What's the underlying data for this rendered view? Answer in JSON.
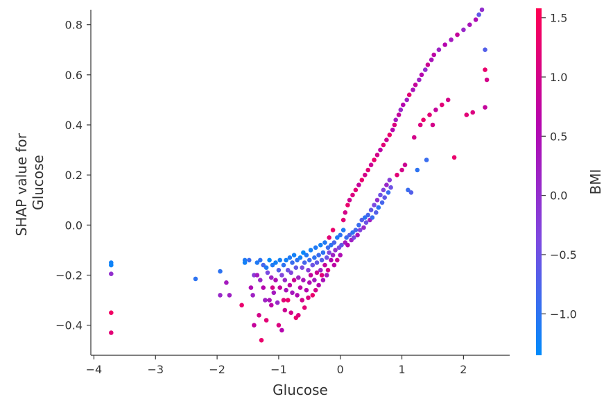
{
  "chart_data": {
    "type": "scatter",
    "title": "",
    "xlabel": "Glucose",
    "ylabel_lines": [
      "SHAP value for",
      "Glucose"
    ],
    "xlim": [
      -4.05,
      2.75
    ],
    "ylim": [
      -0.52,
      0.86
    ],
    "xticks": [
      -4,
      -3,
      -2,
      -1,
      0,
      1,
      2
    ],
    "xtick_labels": [
      "−4",
      "−3",
      "−2",
      "−1",
      "0",
      "1",
      "2"
    ],
    "yticks": [
      -0.4,
      -0.2,
      0.0,
      0.2,
      0.4,
      0.6,
      0.8
    ],
    "ytick_labels": [
      "−0.4",
      "−0.2",
      "0.0",
      "0.2",
      "0.4",
      "0.6",
      "0.8"
    ],
    "grid": false,
    "colorbar": {
      "label": "BMI",
      "range": [
        -1.35,
        1.58
      ],
      "ticks": [
        -1.0,
        -0.5,
        0.0,
        0.5,
        1.0,
        1.5
      ],
      "tick_labels": [
        "−1.0",
        "−0.5",
        "0.0",
        "0.5",
        "1.0",
        "1.5"
      ],
      "colors": [
        "#008bfb",
        "#7d49e0",
        "#b505ae",
        "#ff0052"
      ]
    },
    "series": [
      {
        "points": [
          [
            -3.72,
            -0.15,
            -1.2
          ],
          [
            -3.72,
            -0.16,
            -1.25
          ],
          [
            -3.72,
            -0.195,
            0.0
          ],
          [
            -3.72,
            -0.35,
            1.4
          ],
          [
            -3.72,
            -0.43,
            1.2
          ],
          [
            -2.35,
            -0.215,
            -1.0
          ],
          [
            -1.95,
            -0.185,
            -1.0
          ],
          [
            -1.95,
            -0.28,
            0.1
          ],
          [
            -1.85,
            -0.23,
            0.3
          ],
          [
            -1.8,
            -0.28,
            0.2
          ],
          [
            -1.6,
            -0.32,
            1.3
          ],
          [
            -1.55,
            -0.14,
            -1.1
          ],
          [
            -1.55,
            -0.15,
            -1.2
          ],
          [
            -1.48,
            -0.14,
            -0.9
          ],
          [
            -1.45,
            -0.25,
            0.5
          ],
          [
            -1.42,
            -0.28,
            0.2
          ],
          [
            -1.4,
            -0.2,
            -0.2
          ],
          [
            -1.4,
            -0.4,
            0.8
          ],
          [
            -1.35,
            -0.15,
            -1.1
          ],
          [
            -1.35,
            -0.2,
            0.3
          ],
          [
            -1.32,
            -0.36,
            1.0
          ],
          [
            -1.3,
            -0.14,
            -1.0
          ],
          [
            -1.3,
            -0.22,
            0.1
          ],
          [
            -1.28,
            -0.46,
            1.3
          ],
          [
            -1.25,
            -0.16,
            -0.8
          ],
          [
            -1.25,
            -0.25,
            0.6
          ],
          [
            -1.22,
            -0.3,
            0.2
          ],
          [
            -1.2,
            -0.17,
            -1.1
          ],
          [
            -1.2,
            -0.38,
            1.2
          ],
          [
            -1.18,
            -0.19,
            -0.4
          ],
          [
            -1.15,
            -0.14,
            -1.3
          ],
          [
            -1.15,
            -0.3,
            0.4
          ],
          [
            -1.12,
            -0.21,
            0.2
          ],
          [
            -1.12,
            -0.32,
            0.7
          ],
          [
            -1.1,
            -0.16,
            -1.1
          ],
          [
            -1.1,
            -0.25,
            1.0
          ],
          [
            -1.08,
            -0.27,
            0.3
          ],
          [
            -1.05,
            -0.15,
            -1.2
          ],
          [
            -1.05,
            -0.22,
            0.5
          ],
          [
            -1.02,
            -0.31,
            0.1
          ],
          [
            -1.0,
            -0.18,
            -0.7
          ],
          [
            -1.0,
            -0.4,
            1.1
          ],
          [
            -0.98,
            -0.14,
            -1.2
          ],
          [
            -0.98,
            -0.25,
            0.8
          ],
          [
            -0.95,
            -0.2,
            -0.3
          ],
          [
            -0.95,
            -0.42,
            0.6
          ],
          [
            -0.92,
            -0.16,
            -1.0
          ],
          [
            -0.92,
            -0.3,
            1.2
          ],
          [
            -0.9,
            -0.22,
            0.1
          ],
          [
            -0.9,
            -0.34,
            0.9
          ],
          [
            -0.88,
            -0.14,
            -1.2
          ],
          [
            -0.88,
            -0.26,
            0.4
          ],
          [
            -0.85,
            -0.18,
            -0.5
          ],
          [
            -0.85,
            -0.3,
            1.3
          ],
          [
            -0.82,
            -0.13,
            -1.1
          ],
          [
            -0.82,
            -0.24,
            0.7
          ],
          [
            -0.8,
            -0.19,
            -0.3
          ],
          [
            -0.8,
            -0.35,
            1.0
          ],
          [
            -0.78,
            -0.15,
            -0.9
          ],
          [
            -0.78,
            -0.27,
            0.3
          ],
          [
            -0.75,
            -0.12,
            -1.2
          ],
          [
            -0.75,
            -0.22,
            0.9
          ],
          [
            -0.72,
            -0.17,
            -0.6
          ],
          [
            -0.72,
            -0.37,
            1.3
          ],
          [
            -0.7,
            -0.14,
            -1.0
          ],
          [
            -0.7,
            -0.28,
            0.5
          ],
          [
            -0.68,
            -0.21,
            0.2
          ],
          [
            -0.68,
            -0.36,
            1.1
          ],
          [
            -0.65,
            -0.13,
            -1.2
          ],
          [
            -0.65,
            -0.25,
            0.7
          ],
          [
            -0.62,
            -0.17,
            -0.4
          ],
          [
            -0.62,
            -0.3,
            1.0
          ],
          [
            -0.6,
            -0.11,
            -1.3
          ],
          [
            -0.6,
            -0.22,
            0.4
          ],
          [
            -0.58,
            -0.15,
            -0.8
          ],
          [
            -0.58,
            -0.33,
            1.2
          ],
          [
            -0.55,
            -0.12,
            -1.1
          ],
          [
            -0.55,
            -0.26,
            0.6
          ],
          [
            -0.52,
            -0.18,
            -0.2
          ],
          [
            -0.52,
            -0.29,
            1.1
          ],
          [
            -0.5,
            -0.14,
            -0.9
          ],
          [
            -0.5,
            -0.23,
            0.5
          ],
          [
            -0.48,
            -0.1,
            -1.2
          ],
          [
            -0.48,
            -0.2,
            0.8
          ],
          [
            -0.45,
            -0.16,
            -0.5
          ],
          [
            -0.45,
            -0.28,
            1.3
          ],
          [
            -0.42,
            -0.13,
            -1.0
          ],
          [
            -0.42,
            -0.22,
            0.3
          ],
          [
            -0.4,
            -0.09,
            -1.1
          ],
          [
            -0.4,
            -0.26,
            1.0
          ],
          [
            -0.38,
            -0.15,
            -0.6
          ],
          [
            -0.38,
            -0.19,
            0.9
          ],
          [
            -0.35,
            -0.12,
            -0.9
          ],
          [
            -0.35,
            -0.24,
            0.6
          ],
          [
            -0.32,
            -0.08,
            -1.2
          ],
          [
            -0.32,
            -0.18,
            0.2
          ],
          [
            -0.3,
            -0.14,
            -0.7
          ],
          [
            -0.3,
            -0.2,
            1.2
          ],
          [
            -0.28,
            -0.11,
            -1.0
          ],
          [
            -0.28,
            -0.22,
            0.4
          ],
          [
            -0.25,
            -0.07,
            -1.1
          ],
          [
            -0.25,
            -0.16,
            0.8
          ],
          [
            -0.22,
            -0.13,
            -0.5
          ],
          [
            -0.22,
            -0.2,
            0.3
          ],
          [
            -0.2,
            -0.09,
            -0.9
          ],
          [
            -0.2,
            -0.18,
            1.0
          ],
          [
            -0.18,
            -0.11,
            -0.3
          ],
          [
            -0.18,
            -0.05,
            1.2
          ],
          [
            -0.15,
            -0.14,
            0.6
          ],
          [
            -0.15,
            -0.08,
            -1.0
          ],
          [
            -0.12,
            -0.12,
            0.2
          ],
          [
            -0.12,
            -0.02,
            1.3
          ],
          [
            -0.1,
            -0.16,
            0.7
          ],
          [
            -0.1,
            -0.07,
            -0.8
          ],
          [
            -0.08,
            -0.1,
            0.0
          ],
          [
            -0.05,
            -0.05,
            -1.1
          ],
          [
            -0.05,
            -0.14,
            0.9
          ],
          [
            -0.02,
            -0.09,
            -0.4
          ],
          [
            0.0,
            -0.04,
            -1.0
          ],
          [
            0.0,
            -0.12,
            0.5
          ],
          [
            0.02,
            -0.08,
            -0.6
          ],
          [
            0.05,
            -0.02,
            -1.1
          ],
          [
            0.05,
            0.02,
            1.2
          ],
          [
            0.08,
            -0.07,
            0.3
          ],
          [
            0.08,
            0.05,
            1.0
          ],
          [
            0.1,
            -0.05,
            -0.9
          ],
          [
            0.12,
            -0.08,
            0.6
          ],
          [
            0.12,
            0.08,
            1.3
          ],
          [
            0.15,
            -0.04,
            -0.7
          ],
          [
            0.15,
            0.1,
            0.9
          ],
          [
            0.18,
            -0.06,
            0.2
          ],
          [
            0.2,
            -0.03,
            -1.0
          ],
          [
            0.2,
            0.12,
            1.1
          ],
          [
            0.22,
            -0.05,
            -0.4
          ],
          [
            0.25,
            -0.02,
            -0.8
          ],
          [
            0.25,
            0.14,
            1.2
          ],
          [
            0.28,
            -0.04,
            0.4
          ],
          [
            0.3,
            0.0,
            -0.9
          ],
          [
            0.3,
            0.16,
            0.8
          ],
          [
            0.32,
            -0.02,
            -0.3
          ],
          [
            0.35,
            0.02,
            -0.7
          ],
          [
            0.35,
            0.18,
            1.3
          ],
          [
            0.38,
            -0.01,
            0.1
          ],
          [
            0.4,
            0.03,
            -1.0
          ],
          [
            0.4,
            0.2,
            1.0
          ],
          [
            0.42,
            0.01,
            -0.5
          ],
          [
            0.45,
            0.04,
            -0.8
          ],
          [
            0.45,
            0.22,
            1.2
          ],
          [
            0.48,
            0.02,
            0.2
          ],
          [
            0.5,
            0.06,
            -0.6
          ],
          [
            0.5,
            0.24,
            0.9
          ],
          [
            0.52,
            0.03,
            -0.9
          ],
          [
            0.55,
            0.08,
            -0.4
          ],
          [
            0.55,
            0.26,
            1.3
          ],
          [
            0.58,
            0.05,
            -0.7
          ],
          [
            0.6,
            0.1,
            0.0
          ],
          [
            0.6,
            0.28,
            1.0
          ],
          [
            0.62,
            0.07,
            -1.0
          ],
          [
            0.65,
            0.12,
            -0.5
          ],
          [
            0.65,
            0.3,
            0.7
          ],
          [
            0.68,
            0.09,
            -0.8
          ],
          [
            0.7,
            0.14,
            -0.3
          ],
          [
            0.7,
            0.32,
            1.2
          ],
          [
            0.72,
            0.11,
            -0.6
          ],
          [
            0.75,
            0.16,
            0.1
          ],
          [
            0.75,
            0.34,
            0.9
          ],
          [
            0.78,
            0.13,
            -0.9
          ],
          [
            0.8,
            0.18,
            -0.2
          ],
          [
            0.8,
            0.36,
            1.3
          ],
          [
            0.82,
            0.15,
            -0.5
          ],
          [
            0.85,
            0.38,
            0.6
          ],
          [
            0.88,
            0.4,
            1.1
          ],
          [
            0.9,
            0.42,
            0.3
          ],
          [
            0.92,
            0.2,
            1.2
          ],
          [
            0.95,
            0.44,
            0.8
          ],
          [
            0.98,
            0.46,
            0.1
          ],
          [
            1.0,
            0.22,
            1.0
          ],
          [
            1.02,
            0.48,
            0.6
          ],
          [
            1.05,
            0.24,
            0.9
          ],
          [
            1.08,
            0.5,
            0.2
          ],
          [
            1.1,
            0.14,
            -0.9
          ],
          [
            1.12,
            0.52,
            1.2
          ],
          [
            1.15,
            0.13,
            -0.7
          ],
          [
            1.18,
            0.54,
            0.4
          ],
          [
            1.2,
            0.35,
            1.0
          ],
          [
            1.22,
            0.56,
            0.8
          ],
          [
            1.25,
            0.22,
            -1.0
          ],
          [
            1.28,
            0.58,
            0.2
          ],
          [
            1.3,
            0.4,
            1.1
          ],
          [
            1.32,
            0.6,
            0.6
          ],
          [
            1.35,
            0.42,
            1.3
          ],
          [
            1.38,
            0.62,
            0.0
          ],
          [
            1.4,
            0.26,
            -0.9
          ],
          [
            1.42,
            0.64,
            0.9
          ],
          [
            1.45,
            0.44,
            1.2
          ],
          [
            1.48,
            0.66,
            0.4
          ],
          [
            1.5,
            0.4,
            1.0
          ],
          [
            1.52,
            0.68,
            0.7
          ],
          [
            1.55,
            0.46,
            0.8
          ],
          [
            1.6,
            0.7,
            0.2
          ],
          [
            1.65,
            0.48,
            1.2
          ],
          [
            1.7,
            0.72,
            0.6
          ],
          [
            1.75,
            0.5,
            1.0
          ],
          [
            1.8,
            0.74,
            0.3
          ],
          [
            1.85,
            0.27,
            1.3
          ],
          [
            1.9,
            0.76,
            0.8
          ],
          [
            2.0,
            0.78,
            0.1
          ],
          [
            2.05,
            0.44,
            1.2
          ],
          [
            2.1,
            0.8,
            0.4
          ],
          [
            2.15,
            0.45,
            1.1
          ],
          [
            2.2,
            0.82,
            0.5
          ],
          [
            2.25,
            0.84,
            -0.6
          ],
          [
            2.3,
            0.86,
            0.0
          ],
          [
            2.35,
            0.7,
            -0.7
          ],
          [
            2.35,
            0.47,
            0.8
          ],
          [
            2.35,
            0.62,
            1.3
          ],
          [
            2.38,
            0.58,
            1.0
          ]
        ]
      }
    ]
  }
}
